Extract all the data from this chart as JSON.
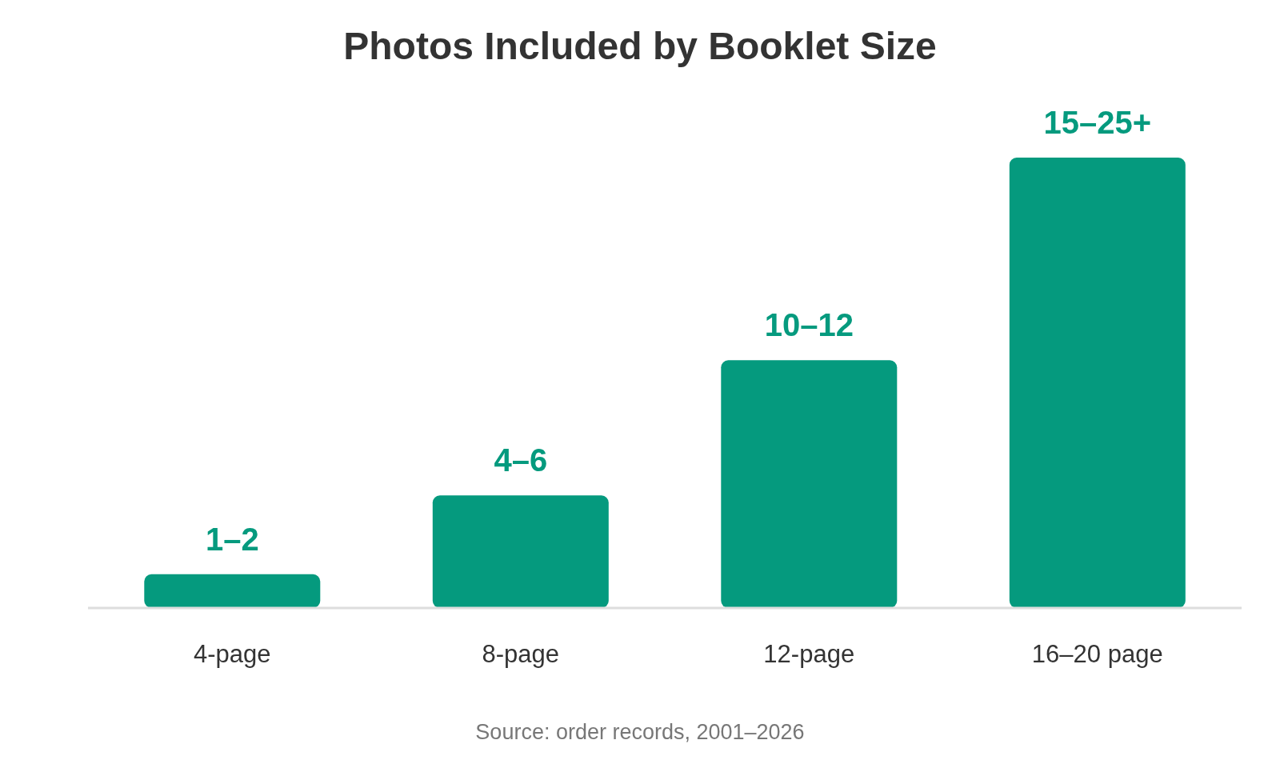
{
  "chart_data": {
    "type": "bar",
    "title": "Photos Included by Booklet Size",
    "categories": [
      "4-page",
      "8-page",
      "12-page",
      "16–20 page"
    ],
    "values": [
      1.5,
      5,
      11,
      20
    ],
    "color": "#059a7e",
    "value_labels": [
      "1–2",
      "4–6",
      "10–12",
      "15–25+"
    ],
    "annotations": [
      "Source: order records, 2001–2026"
    ]
  }
}
